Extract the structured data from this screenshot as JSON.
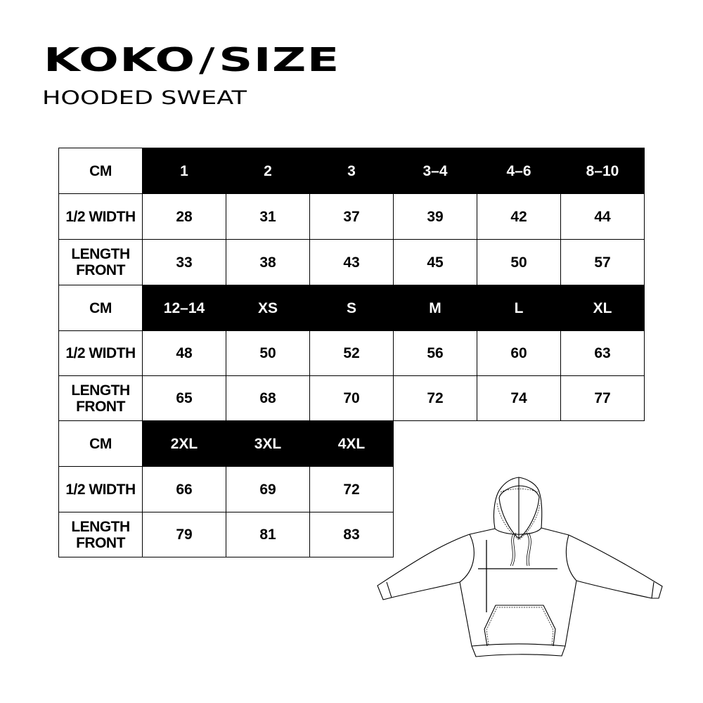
{
  "header": {
    "brand_left": "KOKO",
    "brand_separator": "/",
    "brand_right": "SIZE",
    "subtitle": "HOODED SWEAT"
  },
  "table": {
    "unit_label": "CM",
    "row_labels": [
      "1/2 WIDTH",
      "LENGTH FRONT"
    ],
    "blocks": [
      {
        "sizes": [
          "1",
          "2",
          "3",
          "3–4",
          "4–6",
          "8–10"
        ],
        "half_width": [
          "28",
          "31",
          "37",
          "39",
          "42",
          "44"
        ],
        "length_front": [
          "33",
          "38",
          "43",
          "45",
          "50",
          "57"
        ]
      },
      {
        "sizes": [
          "12–14",
          "XS",
          "S",
          "M",
          "L",
          "XL"
        ],
        "half_width": [
          "48",
          "50",
          "52",
          "56",
          "60",
          "63"
        ],
        "length_front": [
          "65",
          "68",
          "70",
          "72",
          "74",
          "77"
        ]
      },
      {
        "sizes": [
          "2XL",
          "3XL",
          "4XL"
        ],
        "half_width": [
          "66",
          "69",
          "72"
        ],
        "length_front": [
          "79",
          "81",
          "83"
        ]
      }
    ]
  },
  "illustration": {
    "icon": "hooded-sweatshirt-flat-sketch",
    "line_color": "#000000"
  }
}
